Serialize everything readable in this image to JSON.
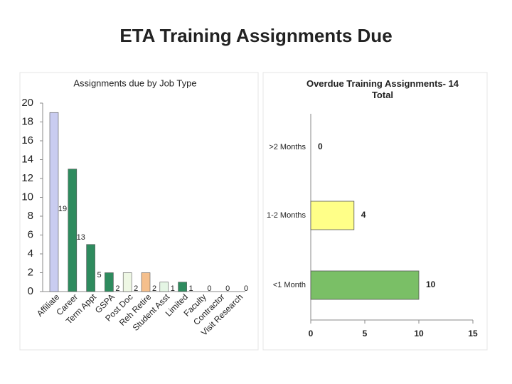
{
  "title": "ETA Training Assignments Due",
  "chart_data": [
    {
      "type": "bar",
      "title": "Assignments due by Job Type",
      "categories": [
        "Affiliate",
        "Career",
        "Term Appt",
        "GSPA",
        "Post Doc",
        "Reh Retire",
        "Student Asst",
        "Limited",
        "Faculty",
        "Contractor",
        "Visit Research"
      ],
      "values": [
        19,
        13,
        5,
        2,
        2,
        2,
        1,
        1,
        0,
        0,
        0
      ],
      "colors": [
        "#c9ccf0",
        "#2e8b5e",
        "#2e8b5e",
        "#2e8b5e",
        "#eef7e4",
        "#f5bf8c",
        "#e4f5e4",
        "#2e8b5e",
        "#2e8b5e",
        "#2e8b5e",
        "#2e8b5e"
      ],
      "ylim": [
        0,
        20
      ],
      "yticks": [
        0,
        2,
        4,
        6,
        8,
        10,
        12,
        14,
        16,
        18,
        20
      ]
    },
    {
      "type": "barh",
      "title": "Overdue Training Assignments- 14 Total",
      "categories": [
        ">2 Months",
        "1-2 Months",
        "<1 Month"
      ],
      "values": [
        0,
        4,
        10
      ],
      "colors": [
        "#ffff88",
        "#ffff88",
        "#7abf66"
      ],
      "xlim": [
        0,
        15
      ],
      "xticks": [
        0,
        5,
        10,
        15
      ]
    }
  ]
}
